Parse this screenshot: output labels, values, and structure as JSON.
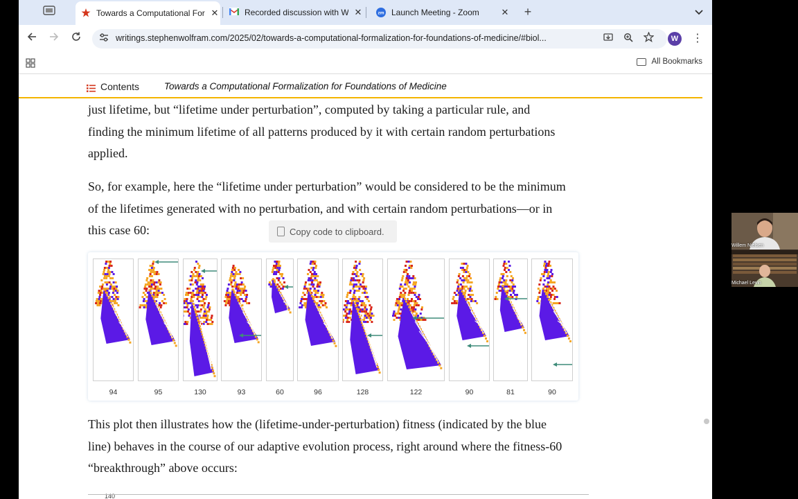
{
  "browser": {
    "tabs": [
      {
        "title": "Towards a Computational For",
        "favicon": "wolfram-icon",
        "active": true
      },
      {
        "title": "Recorded discussion with Wi",
        "favicon": "gmail-icon",
        "active": false
      },
      {
        "title": "Launch Meeting - Zoom",
        "favicon": "zoom-icon",
        "active": false
      }
    ],
    "new_tab_label": "+",
    "url": "writings.stephenwolfram.com/2025/02/towards-a-computational-formalization-for-foundations-of-medicine/#biol...",
    "profile_initial": "W",
    "all_bookmarks_label": "All Bookmarks"
  },
  "article": {
    "contents_label": "Contents",
    "title": "Towards a Computational Formalization for Foundations of Medicine",
    "paragraphs": [
      {
        "lines": [
          "just lifetime, but “lifetime under perturbation”, computed by taking a particular rule, and",
          "finding the minimum lifetime of all patterns produced by it with certain random perturbations",
          "applied."
        ]
      },
      {
        "lines": [
          "So, for example, here the “lifetime under perturbation” would be considered to be the minimum",
          "of the lifetimes generated with no perturbation, and with certain random perturbations—or in",
          "this case 60:"
        ]
      },
      {
        "lines": [
          "This plot then illustrates how the (lifetime-under-perturbation) fitness (indicated by the blue",
          "line) behaves in the course of our adaptive evolution process, right around where the fitness-60",
          "“breakthrough” above occurs:"
        ]
      }
    ],
    "tooltip": "Copy code to clipboard.",
    "figure": {
      "lifetimes": [
        "94",
        "95",
        "130",
        "93",
        "60",
        "96",
        "128",
        "122",
        "90",
        "81",
        "90"
      ],
      "colors": {
        "purple": "#5b1ae6",
        "orange": "#f5a623",
        "red": "#d8271c",
        "arrow": "#3f8c7a"
      }
    },
    "next_plot_axis_label": "140"
  },
  "video": {
    "participants": [
      {
        "name": "Willem Nielsen"
      },
      {
        "name": "Michael Levin"
      }
    ]
  }
}
